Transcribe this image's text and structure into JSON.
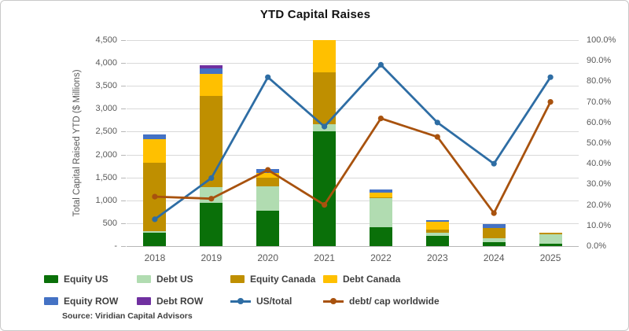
{
  "title": "YTD Capital Raises",
  "source_note": "Source: Viridian Capital Advisors",
  "chart_data": {
    "type": "combo: stacked bar + line",
    "title": "YTD Capital Raises",
    "categories": [
      "2018",
      "2019",
      "2020",
      "2021",
      "2022",
      "2023",
      "2024",
      "2025"
    ],
    "bar_series": [
      {
        "name": "Equity US",
        "color": "#0a7009",
        "values": [
          300,
          950,
          770,
          2500,
          410,
          230,
          90,
          45
        ]
      },
      {
        "name": "Debt US",
        "color": "#b1dcb1",
        "values": [
          20,
          330,
          540,
          165,
          630,
          70,
          85,
          205
        ]
      },
      {
        "name": "Equity Canada",
        "color": "#bf8f00",
        "values": [
          1500,
          2000,
          190,
          1130,
          25,
          55,
          215,
          50
        ]
      },
      {
        "name": "Debt Canada",
        "color": "#ffc000",
        "values": [
          520,
          480,
          100,
          705,
          95,
          170,
          0,
          0
        ]
      },
      {
        "name": "Equity ROW",
        "color": "#4472c4",
        "values": [
          100,
          125,
          75,
          0,
          80,
          40,
          90,
          0
        ]
      },
      {
        "name": "Debt ROW",
        "color": "#7030a0",
        "values": [
          0,
          70,
          0,
          0,
          0,
          0,
          0,
          0
        ]
      }
    ],
    "line_series": [
      {
        "name": "US/total",
        "color": "#2e6da4",
        "axis": "right",
        "values_pct": [
          13,
          33,
          82,
          58,
          88,
          60,
          40,
          82
        ]
      },
      {
        "name": "debt/ cap worldwide",
        "color": "#a8520e",
        "axis": "right",
        "values_pct": [
          24,
          23,
          37,
          20,
          62,
          53,
          16,
          70
        ]
      }
    ],
    "left_axis": {
      "label": "Total Capital Raised YTD ($ Millions)",
      "min": 0,
      "max": 4500,
      "step": 500,
      "tick_labels": [
        "4,500",
        "4,000",
        "3,500",
        "3,000",
        "2,500",
        "2,000",
        "1,500",
        "1,000",
        "500",
        "-"
      ],
      "tick_values": [
        4500,
        4000,
        3500,
        3000,
        2500,
        2000,
        1500,
        1000,
        500,
        0
      ]
    },
    "right_axis": {
      "min": 0,
      "max": 100,
      "step": 10,
      "tick_labels": [
        "100.0%",
        "90.0%",
        "80.0%",
        "70.0%",
        "60.0%",
        "50.0%",
        "40.0%",
        "30.0%",
        "20.0%",
        "10.0%",
        "0.0%"
      ],
      "tick_values": [
        100,
        90,
        80,
        70,
        60,
        50,
        40,
        30,
        20,
        10,
        0
      ]
    },
    "grid": true,
    "legend_position": "bottom",
    "legend_rows": [
      [
        "Equity US",
        "Debt US",
        "Equity Canada",
        "Debt Canada"
      ],
      [
        "Equity ROW",
        "Debt ROW",
        "US/total",
        "debt/ cap worldwide"
      ]
    ]
  }
}
